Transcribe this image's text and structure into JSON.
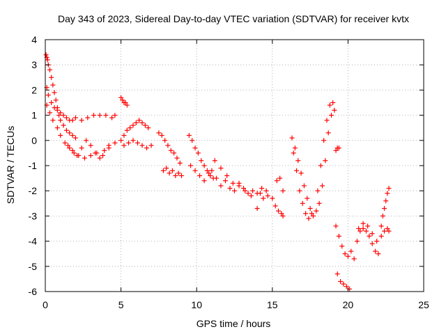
{
  "chart_data": {
    "type": "scatter",
    "title": "Day 343 of 2023, Sidereal Day-to-day VTEC variation (SDTVAR) for receiver kvtx",
    "xlabel": "GPS time / hours",
    "ylabel": "SDTVAR / TECUs",
    "xlim": [
      0,
      25
    ],
    "ylim": [
      -6,
      4
    ],
    "xticks": [
      0,
      5,
      10,
      15,
      20,
      25
    ],
    "yticks": [
      -6,
      -5,
      -4,
      -3,
      -2,
      -1,
      0,
      1,
      2,
      3,
      4
    ],
    "grid": true,
    "marker": "+",
    "color": "#ff0000",
    "series": [
      {
        "name": "SDTVAR",
        "x": [
          0.05,
          0.1,
          0.15,
          0.2,
          0.3,
          0.4,
          0.5,
          0.6,
          0.7,
          0.8,
          0.9,
          1.0,
          1.2,
          1.4,
          1.6,
          1.8,
          2.0,
          0.1,
          0.2,
          0.4,
          0.6,
          0.8,
          1.0,
          1.2,
          1.4,
          1.6,
          1.8,
          2.0,
          2.4,
          2.8,
          3.2,
          3.6,
          4.0,
          4.4,
          4.6,
          0.1,
          0.3,
          0.5,
          0.8,
          1.0,
          1.3,
          1.6,
          1.9,
          2.2,
          2.6,
          3.0,
          3.4,
          3.8,
          4.2,
          4.6,
          1.5,
          1.8,
          2.1,
          2.4,
          2.7,
          3.0,
          3.3,
          3.6,
          3.9,
          4.2,
          5.0,
          5.1,
          5.2,
          5.3,
          5.4,
          5.0,
          5.2,
          5.4,
          5.6,
          5.8,
          6.0,
          6.2,
          6.4,
          6.6,
          6.8,
          5.2,
          5.5,
          5.8,
          6.1,
          6.4,
          6.7,
          7.0,
          7.5,
          7.7,
          7.9,
          8.1,
          8.3,
          8.5,
          8.7,
          8.9,
          7.8,
          8.0,
          8.2,
          8.4,
          8.6,
          8.8,
          9.0,
          9.5,
          9.7,
          9.9,
          10.1,
          10.3,
          10.5,
          10.7,
          10.9,
          9.6,
          9.9,
          10.2,
          10.5,
          10.8,
          11.1,
          11.0,
          11.3,
          11.6,
          11.9,
          12.2,
          12.5,
          12.8,
          13.1,
          13.4,
          13.7,
          14.0,
          14.3,
          14.6,
          11.2,
          11.6,
          12.0,
          12.4,
          12.8,
          13.2,
          13.6,
          14.0,
          14.4,
          14.2,
          14.7,
          15.0,
          15.2,
          15.4,
          15.6,
          15.7,
          15.3,
          15.5,
          15.7,
          16.3,
          16.5,
          16.7,
          16.9,
          17.1,
          17.3,
          17.5,
          17.7,
          17.9,
          16.4,
          16.6,
          16.8,
          17.0,
          17.2,
          17.4,
          17.6,
          18.0,
          18.2,
          18.4,
          18.6,
          18.8,
          19.0,
          19.1,
          18.1,
          18.3,
          18.5,
          18.7,
          18.9,
          19.2,
          19.3,
          19.4,
          19.2,
          19.4,
          19.6,
          19.8,
          20.0,
          20.2,
          20.4,
          19.3,
          19.5,
          19.7,
          19.9,
          20.1,
          20.6,
          20.8,
          21.0,
          21.2,
          21.4,
          21.6,
          21.8,
          22.0,
          20.7,
          21.0,
          21.3,
          21.6,
          21.9,
          22.2,
          22.3,
          22.4,
          22.5,
          22.6,
          22.7,
          22.2,
          22.4,
          22.6,
          22.7
        ],
        "y": [
          3.4,
          3.3,
          3.2,
          3.0,
          2.8,
          2.5,
          2.2,
          1.9,
          1.6,
          1.3,
          1.0,
          0.8,
          0.6,
          0.4,
          0.3,
          0.2,
          0.1,
          2.1,
          1.8,
          1.5,
          1.3,
          1.2,
          1.1,
          1.0,
          0.9,
          0.8,
          0.8,
          0.9,
          0.8,
          0.9,
          1.0,
          1.0,
          1.0,
          0.9,
          1.0,
          1.4,
          1.1,
          0.8,
          0.5,
          0.2,
          -0.1,
          -0.3,
          -0.5,
          -0.6,
          -0.7,
          -0.6,
          -0.5,
          -0.6,
          -0.3,
          -0.1,
          -0.2,
          -0.4,
          -0.6,
          -0.3,
          0.0,
          -0.2,
          -0.5,
          -0.7,
          -0.4,
          -0.2,
          1.7,
          1.6,
          1.5,
          1.5,
          1.4,
          0.0,
          0.2,
          0.4,
          0.5,
          0.6,
          0.7,
          0.8,
          0.7,
          0.6,
          0.5,
          -0.2,
          -0.1,
          0.0,
          -0.1,
          -0.2,
          -0.3,
          -0.2,
          0.3,
          0.2,
          0.0,
          -0.2,
          -0.4,
          -0.5,
          -0.7,
          -0.9,
          -1.2,
          -1.1,
          -1.3,
          -1.2,
          -1.4,
          -1.3,
          -1.4,
          0.2,
          0.0,
          -0.3,
          -0.5,
          -0.8,
          -1.0,
          -1.2,
          -1.4,
          -1.0,
          -1.2,
          -1.4,
          -1.6,
          -1.3,
          -1.5,
          -1.2,
          -1.5,
          -1.8,
          -1.6,
          -1.9,
          -2.0,
          -1.8,
          -1.9,
          -2.1,
          -2.0,
          -2.1,
          -1.9,
          -2.0,
          -0.8,
          -1.1,
          -1.4,
          -1.7,
          -1.7,
          -2.0,
          -2.2,
          -2.7,
          -2.3,
          -2.1,
          -2.2,
          -2.3,
          -2.6,
          -2.8,
          -2.9,
          -3.0,
          -1.6,
          -1.5,
          -2.0,
          0.1,
          -0.3,
          -0.8,
          -1.3,
          -1.8,
          -2.3,
          -2.7,
          -3.0,
          -2.8,
          -0.5,
          -1.2,
          -2.0,
          -2.5,
          -2.9,
          -3.1,
          -2.9,
          -2.0,
          -1.0,
          0.0,
          0.8,
          1.4,
          1.5,
          1.2,
          -2.5,
          -1.8,
          -0.8,
          0.3,
          1.0,
          -0.4,
          -0.3,
          -0.3,
          -3.4,
          -3.8,
          -4.2,
          -4.5,
          -4.6,
          -4.4,
          -4.7,
          -5.3,
          -5.6,
          -5.7,
          -5.8,
          -5.9,
          -4.0,
          -3.6,
          -3.5,
          -3.6,
          -3.8,
          -4.1,
          -4.4,
          -4.5,
          -3.5,
          -3.3,
          -3.4,
          -3.7,
          -4.0,
          -3.4,
          -3.0,
          -2.7,
          -2.4,
          -2.1,
          -1.9,
          -3.8,
          -3.6,
          -3.5,
          -3.6
        ]
      }
    ]
  }
}
